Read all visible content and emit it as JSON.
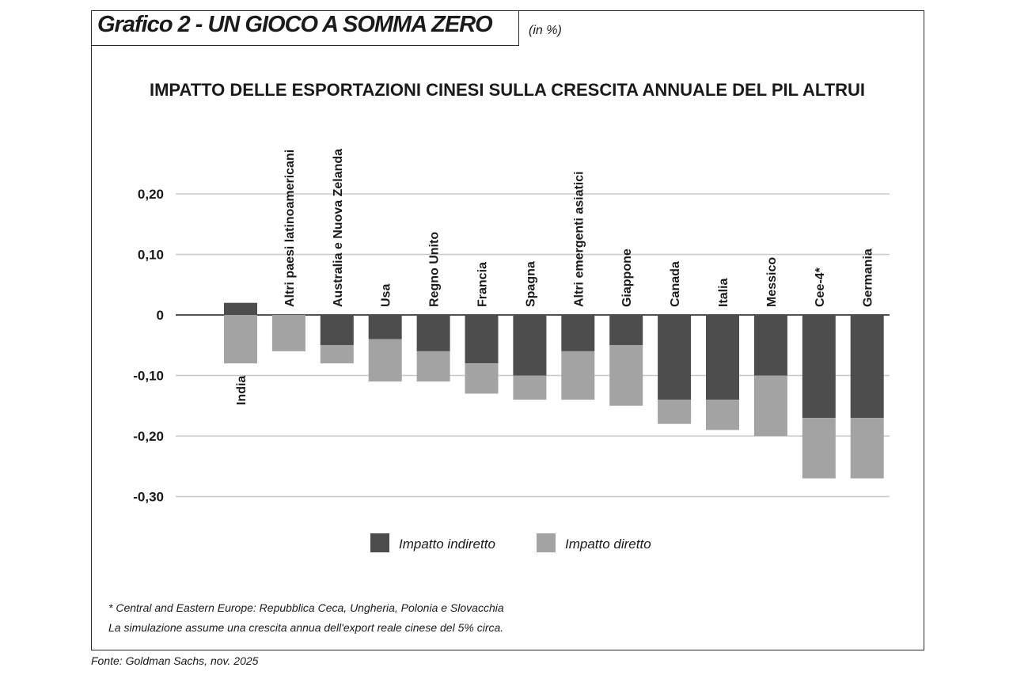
{
  "header": {
    "title": "Grafico 2 - UN GIOCO A SOMMA ZERO",
    "unit": "(in %)"
  },
  "source": "Fonte: Goldman Sachs, nov. 2025",
  "colors": {
    "indiretto": "#4d4d4d",
    "diretto": "#a3a3a3",
    "grid": "#c8c8c8"
  },
  "chart_data": {
    "type": "bar",
    "stacked": true,
    "title": "IMPATTO DELLE ESPORTAZIONI CINESI SULLA CRESCITA ANNUALE DEL PIL ALTRUI",
    "categories": [
      "India",
      "Altri paesi latinoamericani",
      "Australia e Nuova Zelanda",
      "Usa",
      "Regno Unito",
      "Francia",
      "Spagna",
      "Altri emergenti asiatici",
      "Giappone",
      "Canada",
      "Italia",
      "Messico",
      "Cee-4*",
      "Germania"
    ],
    "series": [
      {
        "name": "Impatto indiretto",
        "values": [
          0.02,
          0.0,
          -0.05,
          -0.04,
          -0.06,
          -0.08,
          -0.1,
          -0.06,
          -0.05,
          -0.14,
          -0.14,
          -0.1,
          -0.17,
          -0.17
        ]
      },
      {
        "name": "Impatto diretto",
        "values": [
          -0.08,
          -0.06,
          -0.03,
          -0.07,
          -0.05,
          -0.05,
          -0.04,
          -0.08,
          -0.1,
          -0.04,
          -0.05,
          -0.1,
          -0.1,
          -0.1
        ]
      }
    ],
    "yticks": [
      "0,20",
      "0,10",
      "0",
      "-0,10",
      "-0,20",
      "-0,30"
    ],
    "ytick_values": [
      0.2,
      0.1,
      0,
      -0.1,
      -0.2,
      -0.3
    ],
    "ylim": [
      -0.3,
      0.2
    ],
    "grid": true,
    "legend_position": "bottom",
    "notes": [
      "* Central and Eastern Europe: Repubblica Ceca, Ungheria, Polonia e Slovacchia",
      "La simulazione assume una crescita annua dell'export reale cinese del 5% circa."
    ]
  }
}
